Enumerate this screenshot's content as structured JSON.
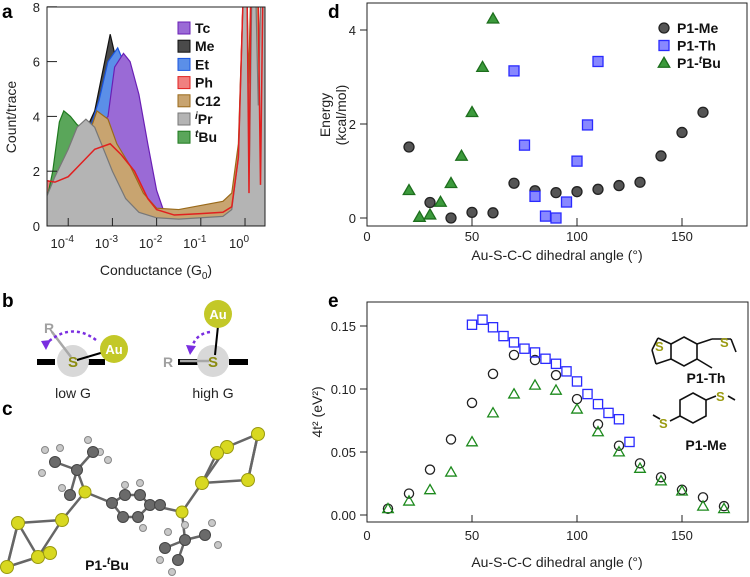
{
  "panel_letters": {
    "a": "a",
    "b": "b",
    "c": "c",
    "d": "d",
    "e": "e"
  },
  "chart_data": [
    {
      "id": "a",
      "type": "area",
      "title": "",
      "xlabel": "Conductance (G",
      "xlabel_sub": "0",
      "xlabel_end": ")",
      "ylabel": "Count/trace",
      "xscale": "log",
      "xlim_log10": [
        -4.48,
        0.5
      ],
      "ylim": [
        0,
        8
      ],
      "xticks_base": "10",
      "xticks_exp": [
        "-4",
        "-3",
        "-2",
        "-1",
        "0"
      ],
      "yticks": [
        "0",
        "2",
        "4",
        "6",
        "8"
      ],
      "legend_position": "top-right",
      "series": [
        {
          "name": "Me",
          "sup": "",
          "fill": "#4a4a4a",
          "stroke": "#111111",
          "x": [
            -3.6,
            -3.4,
            -3.2,
            -3.05,
            -2.95,
            -2.8,
            -2.5,
            -2.0,
            -1.8
          ],
          "y": [
            3.5,
            4.2,
            5.8,
            7.0,
            6.3,
            5.5,
            3.0,
            0.6,
            0.5
          ]
        },
        {
          "name": "Et",
          "sup": "",
          "fill": "#5b8fe8",
          "stroke": "#1a55e0",
          "x": [
            -3.5,
            -3.3,
            -3.1,
            -2.88,
            -2.7,
            -2.4,
            -2.0,
            -1.8
          ],
          "y": [
            3.6,
            4.6,
            6.0,
            6.5,
            5.8,
            3.5,
            0.8,
            0.5
          ]
        },
        {
          "name": "Tc",
          "sup": "",
          "fill": "#9a6ad6",
          "stroke": "#6a1fb5",
          "x": [
            -3.4,
            -3.1,
            -2.95,
            -2.75,
            -2.6,
            -2.4,
            -2.2,
            -2.0,
            -1.85,
            -1.7
          ],
          "y": [
            3.5,
            4.0,
            5.8,
            6.3,
            6.0,
            4.8,
            3.0,
            1.3,
            0.6,
            0.55
          ]
        },
        {
          "name": "Ph",
          "sup": "",
          "fill": "#f08080",
          "stroke": "#e02020",
          "x": [
            -4.48,
            -4.3,
            -4.0,
            -3.7,
            -3.4,
            -3.05,
            -2.8,
            -2.5,
            -2.2,
            -2.0,
            -1.6,
            -1.0,
            -0.5,
            -0.3,
            -0.15,
            -0.05,
            0.05,
            0.09,
            0.13,
            0.3,
            0.35,
            0.4,
            0.5
          ],
          "y": [
            1.65,
            1.6,
            1.8,
            2.3,
            2.8,
            3.0,
            2.6,
            2.0,
            1.0,
            0.6,
            0.4,
            0.45,
            0.5,
            0.7,
            2.5,
            8,
            8,
            1.2,
            8,
            8,
            1.5,
            8,
            8
          ]
        },
        {
          "name": "C12",
          "sup": "",
          "fill": "#c8a470",
          "stroke": "#9a6a1a",
          "x": [
            -4.48,
            -4.0,
            -3.7,
            -3.5,
            -3.35,
            -3.1,
            -2.9,
            -2.6,
            -2.3,
            -2.0,
            -1.5,
            -1.0,
            -0.5,
            -0.3,
            -0.15,
            -0.05,
            0.05,
            0.08,
            0.12,
            0.3,
            0.35,
            0.4,
            0.5
          ],
          "y": [
            1.0,
            1.8,
            2.5,
            3.5,
            4.2,
            3.9,
            3.0,
            2.2,
            1.2,
            0.65,
            0.6,
            0.75,
            0.9,
            1.2,
            3.0,
            8,
            8,
            5.2,
            8,
            8,
            4.3,
            8,
            8
          ]
        },
        {
          "name": "Bu",
          "sup": "t",
          "fill": "#5aa65a",
          "stroke": "#1f7a1f",
          "x": [
            -4.48,
            -4.35,
            -4.2,
            -4.1,
            -3.95,
            -3.8,
            -3.6
          ],
          "y": [
            1.0,
            2.0,
            3.8,
            4.2,
            4.0,
            3.7,
            3.5
          ]
        },
        {
          "name": "Pr",
          "sup": "i",
          "fill": "#b4b4b4",
          "stroke": "#777777",
          "x": [
            -4.48,
            -4.3,
            -4.0,
            -3.8,
            -3.6,
            -3.4,
            -3.2,
            -3.0,
            -2.7,
            -2.4,
            -2.0,
            -1.5,
            -1.0,
            -0.5,
            -0.3,
            -0.15,
            -0.05,
            0.05,
            0.1,
            0.15,
            0.25,
            0.3,
            0.35,
            0.5
          ],
          "y": [
            1.1,
            1.8,
            2.8,
            3.6,
            3.9,
            3.6,
            2.8,
            2.0,
            1.0,
            0.5,
            0.3,
            0.25,
            0.3,
            0.35,
            0.6,
            2.5,
            8,
            8,
            2.3,
            8,
            8,
            4.4,
            8,
            8
          ]
        }
      ],
      "legend_order": [
        "Tc",
        "Me",
        "Et",
        "Ph",
        "C12",
        "Pr",
        "Bu"
      ]
    },
    {
      "id": "d",
      "type": "scatter",
      "xlabel": "Au-S-C-C dihedral angle (°)",
      "ylabel_line1": "Energy",
      "ylabel_line2": "(kcal/mol)",
      "xlim": [
        0,
        181
      ],
      "ylim": [
        -0.17,
        4.57
      ],
      "xticks": [
        "0",
        "50",
        "100",
        "150"
      ],
      "yticks": [
        "0",
        "2",
        "4"
      ],
      "legend_position": "top-right",
      "series": [
        {
          "name": "P1-Me",
          "sup": "",
          "suffix": "",
          "marker": "circle",
          "fill": "#555555",
          "stroke": "#222222",
          "x": [
            20,
            30,
            40,
            50,
            60,
            70,
            80,
            90,
            100,
            110,
            120,
            130,
            140,
            150,
            160
          ],
          "y": [
            1.51,
            0.33,
            0,
            0.12,
            0.11,
            0.74,
            0.58,
            0.54,
            0.56,
            0.61,
            0.69,
            0.76,
            1.32,
            1.82,
            2.25
          ]
        },
        {
          "name": "P1-Th",
          "sup": "",
          "suffix": "",
          "marker": "square",
          "fill": "#8888ff",
          "stroke": "#2a2aff",
          "x": [
            70,
            75,
            80,
            85,
            90,
            95,
            100,
            105,
            110
          ],
          "y": [
            3.13,
            1.55,
            0.46,
            0.04,
            0,
            0.34,
            1.21,
            1.98,
            3.33
          ]
        },
        {
          "name": "P1-",
          "sup": "t",
          "suffix": "Bu",
          "marker": "triangle",
          "fill": "#3c9a3c",
          "stroke": "#1d6e1d",
          "x": [
            20,
            25,
            30,
            35,
            40,
            45,
            50,
            55,
            60
          ],
          "y": [
            0.59,
            0.02,
            0.07,
            0.34,
            0.74,
            1.32,
            2.25,
            3.21,
            4.24
          ]
        }
      ]
    },
    {
      "id": "e",
      "type": "scatter",
      "xlabel": "Au-S-C-C dihedral angle (°)",
      "ylabel": "4t² (eV²)",
      "xlim": [
        0,
        181
      ],
      "ylim": [
        -0.006,
        0.169
      ],
      "xticks": [
        "0",
        "50",
        "100",
        "150"
      ],
      "yticks": [
        "0.00",
        "0.05",
        "0.10",
        "0.15"
      ],
      "series": [
        {
          "name": "P1-Me",
          "marker": "circle",
          "stroke": "#222222",
          "x": [
            10,
            20,
            30,
            40,
            50,
            60,
            70,
            80,
            90,
            100,
            110,
            120,
            130,
            140,
            150,
            160,
            170
          ],
          "y": [
            0.005,
            0.017,
            0.036,
            0.06,
            0.089,
            0.112,
            0.127,
            0.123,
            0.111,
            0.092,
            0.072,
            0.055,
            0.041,
            0.03,
            0.02,
            0.014,
            0.007
          ]
        },
        {
          "name": "P1-tBu",
          "marker": "triangle",
          "stroke": "#1d8a1d",
          "x": [
            10,
            20,
            30,
            40,
            50,
            60,
            70,
            80,
            90,
            100,
            110,
            120,
            130,
            140,
            150,
            160,
            170
          ],
          "y": [
            0.005,
            0.011,
            0.02,
            0.034,
            0.058,
            0.081,
            0.096,
            0.103,
            0.099,
            0.084,
            0.066,
            0.05,
            0.037,
            0.027,
            0.019,
            0.007,
            0.005
          ]
        },
        {
          "name": "P1-Th",
          "marker": "square",
          "stroke": "#2a2aff",
          "x": [
            50,
            55,
            60,
            65,
            70,
            75,
            80,
            85,
            90,
            95,
            100,
            105,
            110,
            115,
            120,
            125
          ],
          "y": [
            0.151,
            0.155,
            0.149,
            0.142,
            0.137,
            0.132,
            0.129,
            0.124,
            0.12,
            0.114,
            0.106,
            0.096,
            0.088,
            0.081,
            0.076,
            0.058
          ]
        }
      ]
    }
  ],
  "diagram_b": {
    "R": "R",
    "S": "S",
    "Au": "Au",
    "low_label": "low G",
    "high_label": "high G"
  },
  "molecule_c": {
    "label_prefix": "P1-",
    "label_sup": "t",
    "label_suffix": "Bu"
  },
  "structures_e": {
    "S": "S",
    "th_label": "P1-Th",
    "me_label": "P1-Me"
  }
}
